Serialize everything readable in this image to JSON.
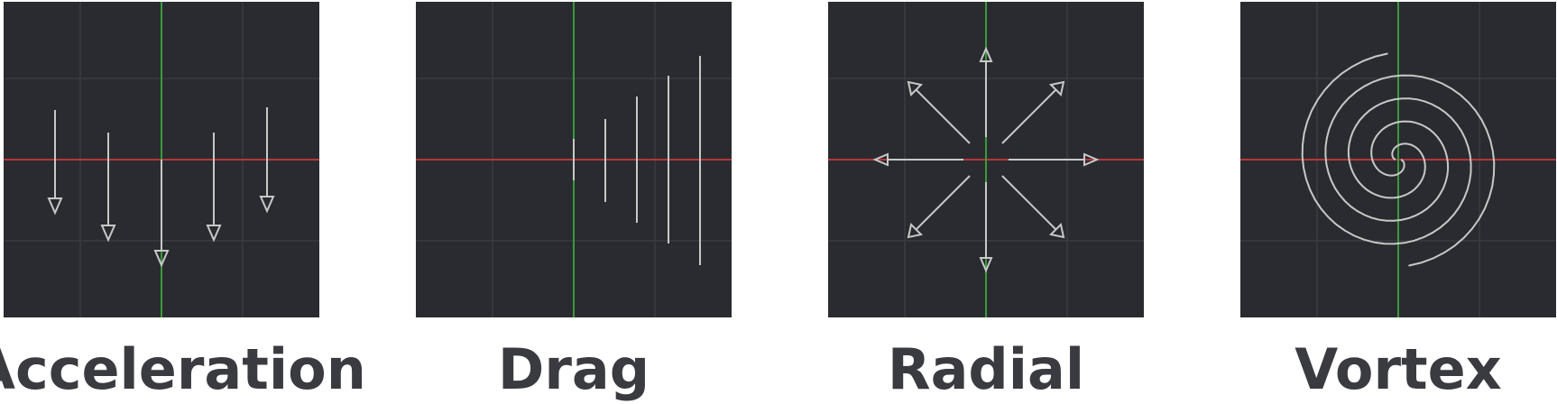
{
  "colors": {
    "panel_bg": "#2a2b30",
    "grid": "#3a3b40",
    "x_axis": "#b3363c",
    "y_axis": "#3a9a3a",
    "vector": "#c8c8c8",
    "label_text": "#3a3b40"
  },
  "panels": [
    {
      "id": "acceleration",
      "label": "Acceleration",
      "icon": "downward-arrows"
    },
    {
      "id": "drag",
      "label": "Drag",
      "icon": "vertical-lines"
    },
    {
      "id": "radial",
      "label": "Radial",
      "icon": "outward-arrows"
    },
    {
      "id": "vortex",
      "label": "Vortex",
      "icon": "spiral"
    }
  ]
}
